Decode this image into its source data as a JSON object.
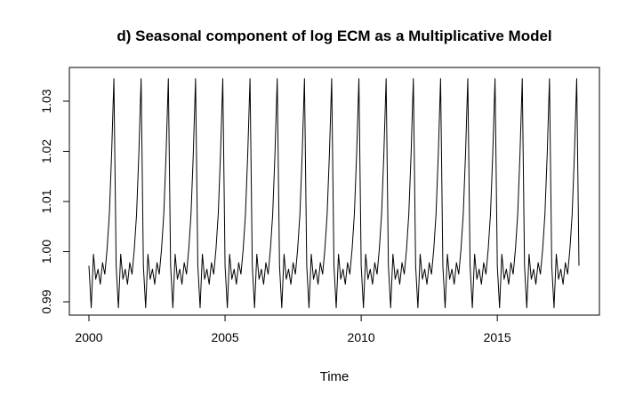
{
  "chart_data": {
    "type": "line",
    "title": "d) Seasonal component of log ECM as a Multiplicative Model",
    "xlabel": "Time",
    "ylabel": "",
    "xlim": [
      2000,
      2018
    ],
    "ylim": [
      0.9875,
      1.0355
    ],
    "x_ticks": [
      2000,
      2005,
      2010,
      2015
    ],
    "x_tick_labels": [
      "2000",
      "2005",
      "2010",
      "2015"
    ],
    "y_ticks": [
      0.99,
      1.0,
      1.01,
      1.02,
      1.03
    ],
    "y_tick_labels": [
      "0.99",
      "1.00",
      "1.01",
      "1.02",
      "1.03"
    ],
    "grid": false,
    "legend": "none",
    "frequency": 12,
    "start": 2000,
    "n_years": 18,
    "line_color": "#000000",
    "seasonal_pattern": [
      0.9972,
      0.9888,
      0.9995,
      0.9945,
      0.9965,
      0.9935,
      0.9978,
      0.9955,
      1.0005,
      1.0075,
      1.0195,
      1.0345
    ]
  }
}
